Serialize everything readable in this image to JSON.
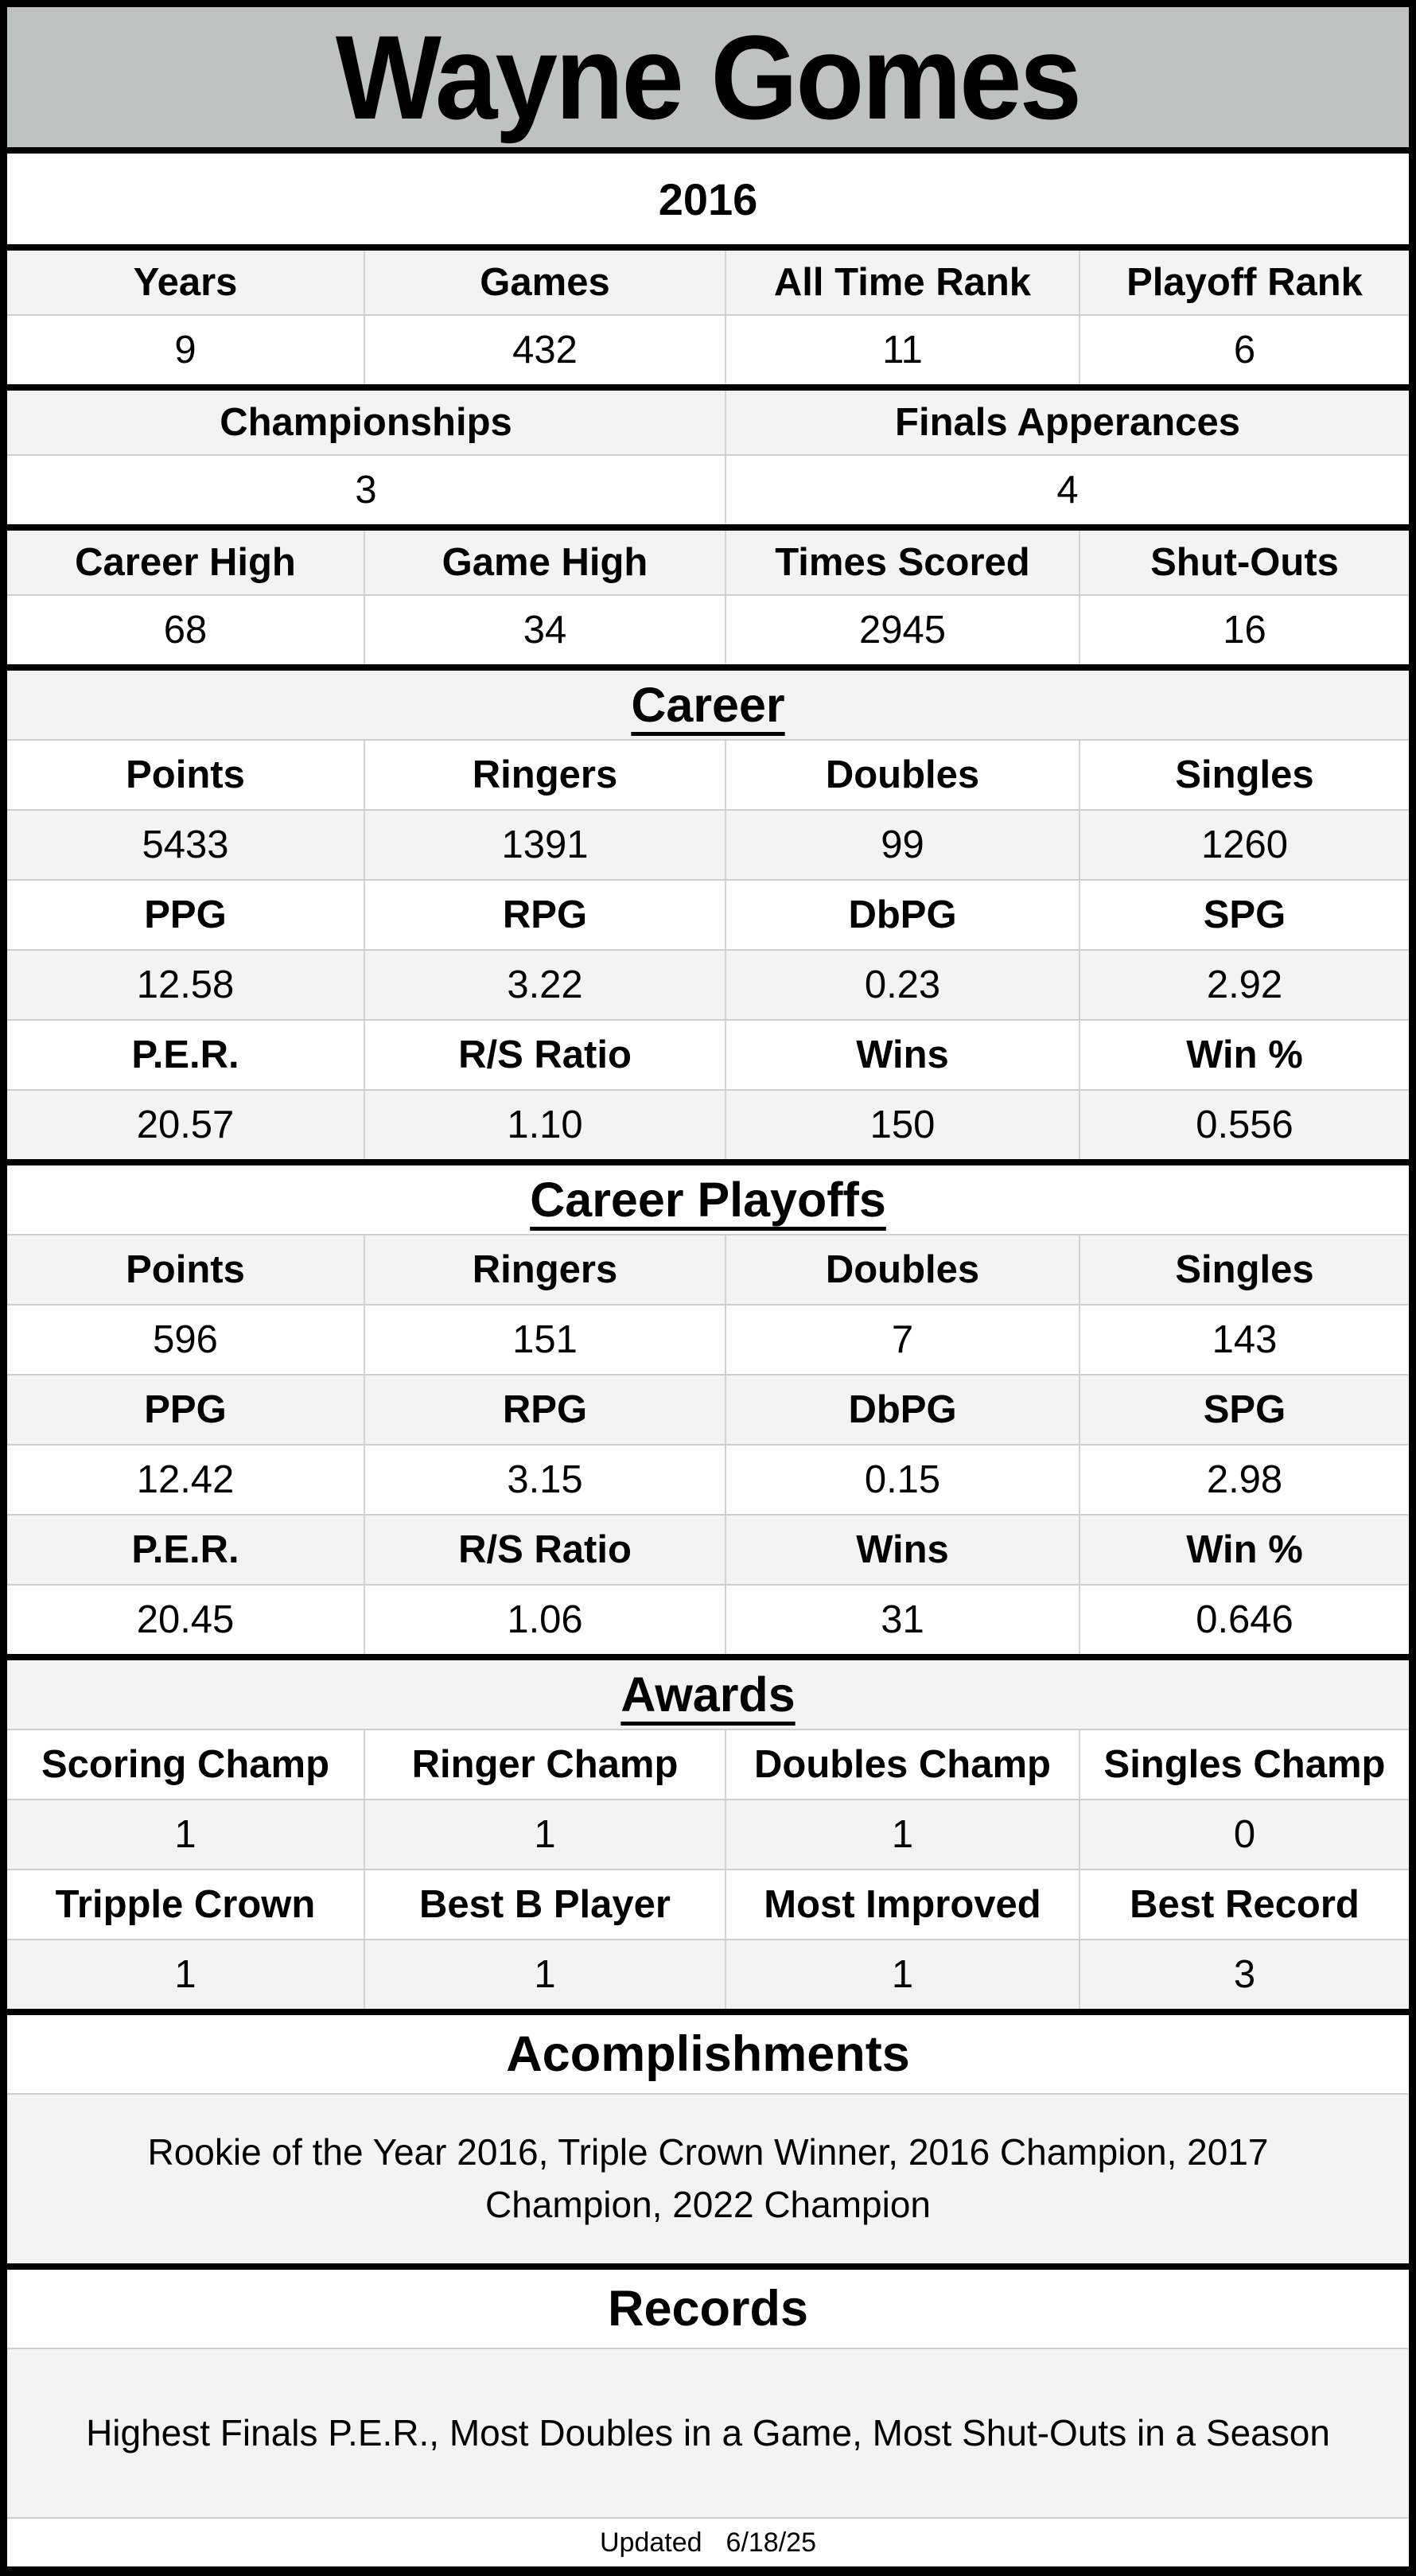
{
  "player": {
    "name": "Wayne Gomes",
    "season": "2016"
  },
  "colors": {
    "name_band_background": "#bec2c0",
    "shaded_row_background": "#f2f3f2",
    "cell_divider": "#d4d4d4",
    "section_separator": "#000000"
  },
  "footer": {
    "label": "Updated",
    "date": "6/18/25"
  },
  "table": {
    "rows": [
      {
        "style": "season",
        "text": "2016",
        "shaded": false,
        "sep": "black",
        "name": "season-row"
      },
      {
        "style": "h4",
        "cells": [
          "Years",
          "Games",
          "All Time Rank",
          "Playoff Rank"
        ],
        "shaded": true,
        "sep": "black",
        "name": "summary-header-row"
      },
      {
        "style": "v4",
        "cells": [
          "9",
          "432",
          "11",
          "6"
        ],
        "shaded": false,
        "sep": "thin",
        "name": "summary-value-row"
      },
      {
        "style": "h2",
        "cells": [
          "Championships",
          "Finals Apperances"
        ],
        "shaded": true,
        "sep": "black",
        "name": "titles-header-row"
      },
      {
        "style": "v2",
        "cells": [
          "3",
          "4"
        ],
        "shaded": false,
        "sep": "thin",
        "name": "titles-value-row"
      },
      {
        "style": "h4",
        "cells": [
          "Career High",
          "Game High",
          "Times Scored",
          "Shut-Outs"
        ],
        "shaded": true,
        "sep": "black",
        "name": "highs-header-row"
      },
      {
        "style": "v4",
        "cells": [
          "68",
          "34",
          "2945",
          "16"
        ],
        "shaded": false,
        "sep": "thin",
        "name": "highs-value-row"
      },
      {
        "style": "stitle",
        "text": "Career",
        "shaded": true,
        "sep": "black",
        "name": "career-section-title-row"
      },
      {
        "style": "h4",
        "cells": [
          "Points",
          "Ringers",
          "Doubles",
          "Singles"
        ],
        "shaded": false,
        "sep": "thin"
      },
      {
        "style": "v4",
        "cells": [
          "5433",
          "1391",
          "99",
          "1260"
        ],
        "shaded": true,
        "sep": "thin"
      },
      {
        "style": "h4",
        "cells": [
          "PPG",
          "RPG",
          "DbPG",
          "SPG"
        ],
        "shaded": false,
        "sep": "thin"
      },
      {
        "style": "v4",
        "cells": [
          "12.58",
          "3.22",
          "0.23",
          "2.92"
        ],
        "shaded": true,
        "sep": "thin"
      },
      {
        "style": "h4",
        "cells": [
          "P.E.R.",
          "R/S Ratio",
          "Wins",
          "Win %"
        ],
        "shaded": false,
        "sep": "thin"
      },
      {
        "style": "v4",
        "cells": [
          "20.57",
          "1.10",
          "150",
          "0.556"
        ],
        "shaded": true,
        "sep": "thin"
      },
      {
        "style": "stitle",
        "text": "Career Playoffs",
        "shaded": false,
        "sep": "black",
        "name": "playoffs-section-title-row"
      },
      {
        "style": "h4",
        "cells": [
          "Points",
          "Ringers",
          "Doubles",
          "Singles"
        ],
        "shaded": true,
        "sep": "thin"
      },
      {
        "style": "v4",
        "cells": [
          "596",
          "151",
          "7",
          "143"
        ],
        "shaded": false,
        "sep": "thin"
      },
      {
        "style": "h4",
        "cells": [
          "PPG",
          "RPG",
          "DbPG",
          "SPG"
        ],
        "shaded": true,
        "sep": "thin"
      },
      {
        "style": "v4",
        "cells": [
          "12.42",
          "3.15",
          "0.15",
          "2.98"
        ],
        "shaded": false,
        "sep": "thin"
      },
      {
        "style": "h4",
        "cells": [
          "P.E.R.",
          "R/S Ratio",
          "Wins",
          "Win %"
        ],
        "shaded": true,
        "sep": "thin"
      },
      {
        "style": "v4",
        "cells": [
          "20.45",
          "1.06",
          "31",
          "0.646"
        ],
        "shaded": false,
        "sep": "thin"
      },
      {
        "style": "stitle",
        "text": "Awards",
        "shaded": true,
        "sep": "black",
        "name": "awards-section-title-row"
      },
      {
        "style": "h4",
        "cells": [
          "Scoring Champ",
          "Ringer Champ",
          "Doubles Champ",
          "Singles Champ"
        ],
        "shaded": false,
        "sep": "thin"
      },
      {
        "style": "v4",
        "cells": [
          "1",
          "1",
          "1",
          "0"
        ],
        "shaded": true,
        "sep": "thin"
      },
      {
        "style": "h4",
        "cells": [
          "Tripple Crown",
          "Best B Player",
          "Most Improved",
          "Best Record"
        ],
        "shaded": false,
        "sep": "thin"
      },
      {
        "style": "v4",
        "cells": [
          "1",
          "1",
          "1",
          "3"
        ],
        "shaded": true,
        "sep": "thin"
      },
      {
        "style": "btitle",
        "text": "Acomplishments",
        "shaded": false,
        "sep": "black",
        "name": "accomplishments-title-row"
      },
      {
        "style": "text",
        "text": "Rookie of the Year 2016, Triple Crown Winner, 2016 Champion, 2017 Champion, 2022 Champion",
        "shaded": true,
        "sep": "thin",
        "maxw": 1560,
        "name": "accomplishments-text-row"
      },
      {
        "style": "btitle",
        "text": "Records",
        "shaded": false,
        "sep": "black",
        "name": "records-title-row"
      },
      {
        "style": "text",
        "text": "Highest Finals P.E.R., Most Doubles in a Game, Most Shut-Outs in a Season",
        "shaded": true,
        "sep": "thin",
        "name": "records-text-row"
      }
    ]
  }
}
